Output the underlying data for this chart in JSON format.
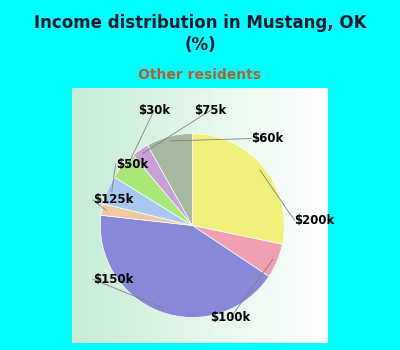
{
  "title": "Income distribution in Mustang, OK\n(%)",
  "subtitle": "Other residents",
  "labels": [
    "$200k",
    "$100k",
    "$150k",
    "$125k",
    "$50k",
    "$30k",
    "$75k",
    "$60k"
  ],
  "values": [
    28,
    6,
    42,
    2,
    5,
    5,
    3,
    8
  ],
  "colors": [
    "#f0f07a",
    "#f0a0b0",
    "#8888d8",
    "#f0c8a0",
    "#a8c8f0",
    "#a8e878",
    "#c8a0d8",
    "#a8b8a0"
  ],
  "bg_cyan": "#00ffff",
  "bg_chart_color1": "#c8f0d8",
  "bg_chart_color2": "#e8f8f0",
  "title_color": "#1a1a2e",
  "subtitle_color": "#b06030",
  "start_angle": 90,
  "label_fontsize": 8.5,
  "title_fontsize": 12,
  "subtitle_fontsize": 10
}
